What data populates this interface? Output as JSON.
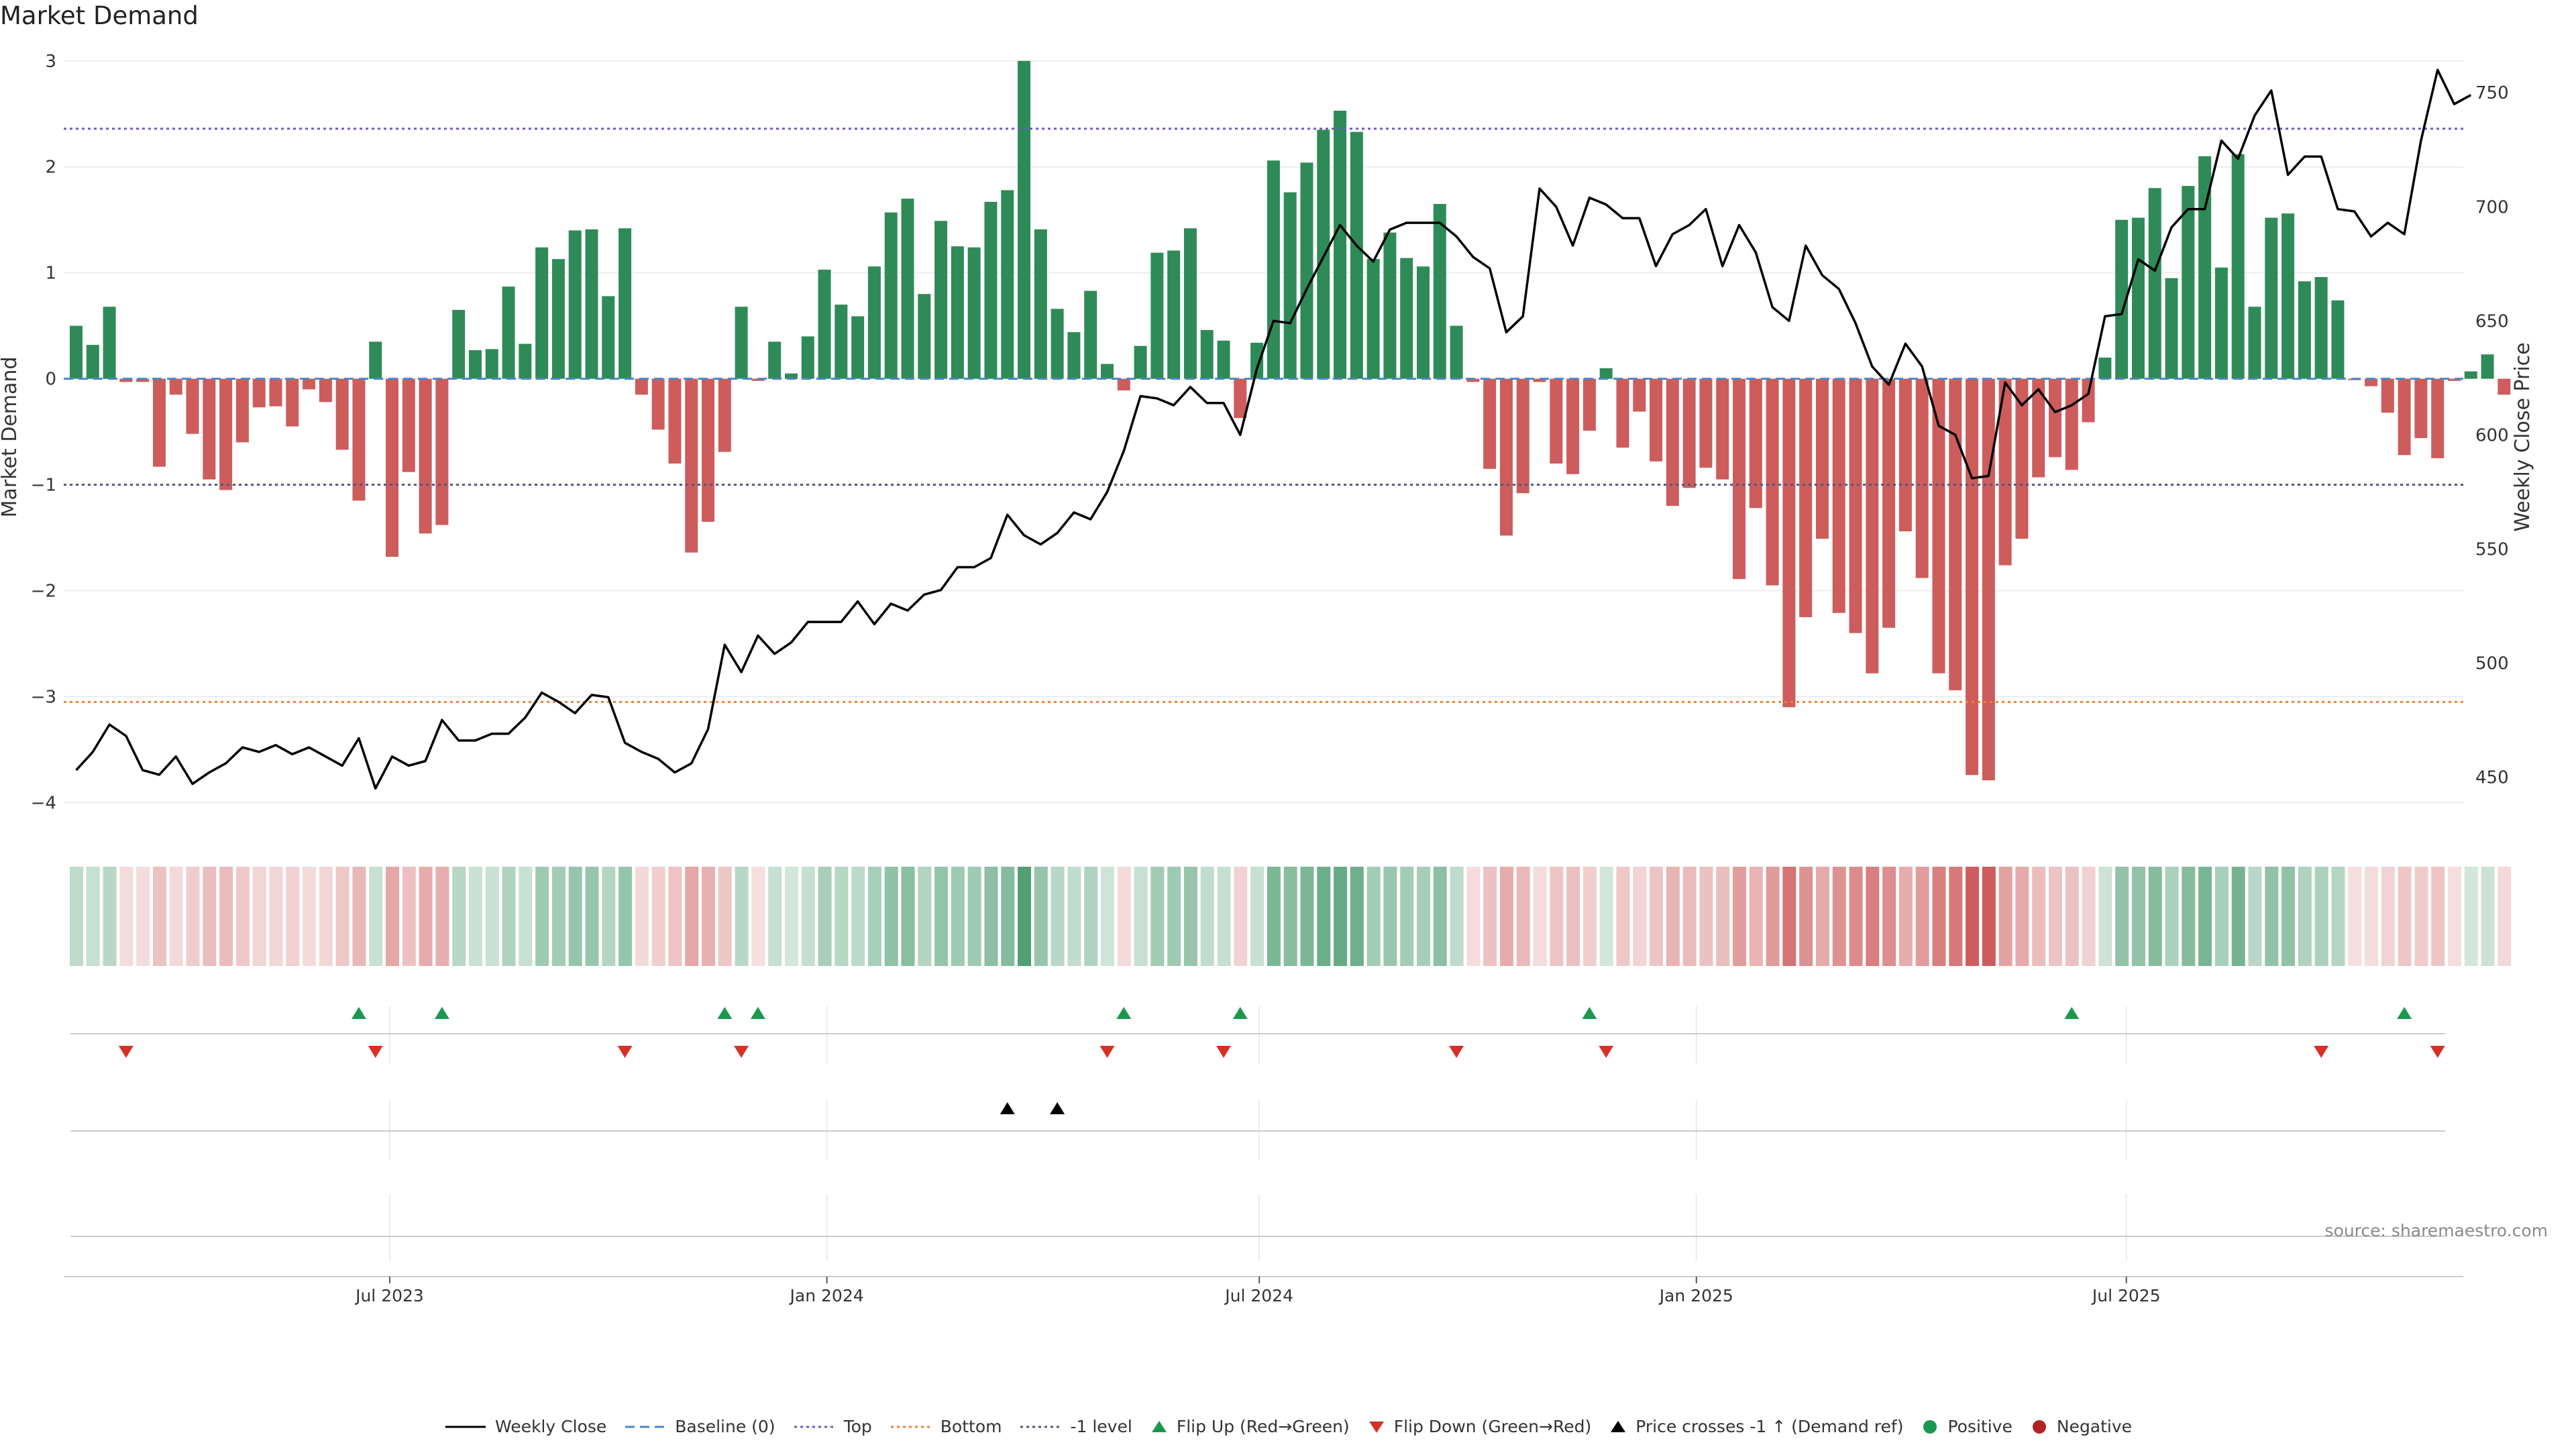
{
  "title": "Market Demand",
  "source": "source: sharemaestro.com",
  "colors": {
    "positive_bar": "#2e8b57",
    "negative_bar": "#cd5c5c",
    "price_line": "#000000",
    "top_line": "#6a5acd",
    "bottom_line": "#e8823a",
    "minus1_line": "#555577",
    "baseline": "#4a86c8",
    "flip_up": "#1a9850",
    "flip_down": "#d73027",
    "cross_marker": "#000000"
  },
  "legend": [
    {
      "label": "Weekly Close",
      "kind": "line",
      "color": "#000000",
      "dash": ""
    },
    {
      "label": "Baseline (0)",
      "kind": "line",
      "color": "#4a86c8",
      "dash": "14,8"
    },
    {
      "label": "Top",
      "kind": "line",
      "color": "#6a5acd",
      "dash": "4,5"
    },
    {
      "label": "Bottom",
      "kind": "line",
      "color": "#e8823a",
      "dash": "4,5"
    },
    {
      "label": "-1 level",
      "kind": "line",
      "color": "#555577",
      "dash": "4,5"
    },
    {
      "label": "Flip Up (Red→Green)",
      "kind": "up",
      "color": "#1a9850"
    },
    {
      "label": "Flip Down (Green→Red)",
      "kind": "down",
      "color": "#d73027"
    },
    {
      "label": "Price crosses -1 ↑ (Demand ref)",
      "kind": "up",
      "color": "#000000"
    },
    {
      "label": "Positive",
      "kind": "dot",
      "color": "#1a9850"
    },
    {
      "label": "Negative",
      "kind": "dot",
      "color": "#b22222"
    }
  ],
  "chart_data": {
    "type": "bar",
    "ylabel": "Market Demand",
    "y2label": "Weekly Close Price",
    "ylim": [
      -4.2,
      3.1
    ],
    "y2lim": [
      429.5,
      768.6
    ],
    "yticks": [
      3,
      2,
      1,
      0,
      -1,
      -2,
      -3,
      -4
    ],
    "ytick_labels": [
      "3",
      "2",
      "1",
      "0",
      "−1",
      "−2",
      "−3",
      "−4"
    ],
    "y2ticks": [
      750,
      700,
      650,
      600,
      550,
      500,
      450
    ],
    "y2tick_labels": [
      "750",
      "700",
      "650",
      "600",
      "550",
      "500",
      "450"
    ],
    "x_week_start": "2023-02-19",
    "xticks": [
      {
        "label": "Jul 2023",
        "date": "2023-07-01"
      },
      {
        "label": "Jan 2024",
        "date": "2024-01-01"
      },
      {
        "label": "Jul 2024",
        "date": "2024-07-01"
      },
      {
        "label": "Jan 2025",
        "date": "2025-01-01"
      },
      {
        "label": "Jul 2025",
        "date": "2025-07-01"
      }
    ],
    "reference_lines": [
      {
        "name": "Top",
        "value": 2.36
      },
      {
        "name": "Bottom",
        "value": -3.05
      },
      {
        "name": "-1 level",
        "value": -1.0
      },
      {
        "name": "Baseline (0)",
        "value": 0
      }
    ],
    "demand": [
      0.5,
      0.32,
      0.68,
      -0.03,
      -0.03,
      -0.83,
      -0.15,
      -0.52,
      -0.95,
      -1.05,
      -0.6,
      -0.27,
      -0.26,
      -0.45,
      -0.1,
      -0.22,
      -0.67,
      -1.15,
      0.35,
      -1.68,
      -0.88,
      -1.46,
      -1.38,
      0.65,
      0.27,
      0.28,
      0.87,
      0.33,
      1.24,
      1.13,
      1.4,
      1.41,
      0.78,
      1.42,
      -0.15,
      -0.48,
      -0.8,
      -1.64,
      -1.35,
      -0.69,
      0.68,
      -0.02,
      0.35,
      0.05,
      0.4,
      1.03,
      0.7,
      0.59,
      1.06,
      1.57,
      1.7,
      0.8,
      1.49,
      1.25,
      1.24,
      1.67,
      1.78,
      3.0,
      1.41,
      0.66,
      0.44,
      0.83,
      0.14,
      -0.11,
      0.31,
      1.19,
      1.21,
      1.42,
      0.46,
      0.36,
      -0.37,
      0.34,
      2.06,
      1.76,
      2.04,
      2.35,
      2.53,
      2.33,
      1.13,
      1.38,
      1.14,
      1.06,
      1.65,
      0.5,
      -0.03,
      -0.85,
      -1.48,
      -1.08,
      -0.03,
      -0.8,
      -0.9,
      -0.49,
      0.1,
      -0.65,
      -0.31,
      -0.78,
      -1.2,
      -1.03,
      -0.84,
      -0.95,
      -1.89,
      -1.22,
      -1.95,
      -3.1,
      -2.25,
      -1.51,
      -2.21,
      -2.4,
      -2.78,
      -2.35,
      -1.44,
      -1.88,
      -2.78,
      -2.94,
      -3.74,
      -3.79,
      -1.76,
      -1.51,
      -0.93,
      -0.74,
      -0.86,
      -0.41,
      0.2,
      1.5,
      1.52,
      1.8,
      0.95,
      1.82,
      2.1,
      1.05,
      2.12,
      0.68,
      1.52,
      1.56,
      0.92,
      0.96,
      0.74,
      -0.01,
      -0.07,
      -0.32,
      -0.72,
      -0.56,
      -0.75,
      -0.02,
      0.07,
      0.23,
      -0.15
    ],
    "price": [
      453,
      461,
      473,
      468,
      453,
      451,
      459,
      447,
      452,
      456,
      463,
      461,
      464,
      460,
      463,
      459,
      455,
      467,
      445,
      459,
      455,
      457,
      475,
      466,
      466,
      469,
      469,
      476,
      487,
      483,
      478,
      486,
      485,
      465,
      461,
      458,
      452,
      456,
      471,
      508,
      496,
      512,
      504,
      509,
      518,
      518,
      518,
      527,
      517,
      526,
      523,
      530,
      532,
      542,
      542,
      546,
      565,
      556,
      552,
      557,
      566,
      563,
      575,
      593,
      617,
      616,
      613,
      621,
      614,
      614,
      600,
      629,
      650,
      649,
      664,
      678,
      692,
      683,
      676,
      690,
      693,
      693,
      693,
      687,
      678,
      673,
      645,
      652,
      708,
      700,
      683,
      704,
      701,
      695,
      695,
      674,
      688,
      692,
      699,
      674,
      692,
      680,
      656,
      650,
      683,
      670,
      664,
      649,
      630,
      622,
      640,
      630,
      604,
      600,
      581,
      582,
      623,
      613,
      620,
      610,
      613,
      618,
      652,
      653,
      677,
      672,
      691,
      699,
      699,
      729,
      721,
      740,
      751,
      714,
      722,
      722,
      699,
      698,
      687,
      693,
      688,
      729,
      760,
      745,
      749
    ],
    "flip_up_weeks": [
      17,
      22,
      39,
      41,
      63,
      70,
      91,
      120,
      140
    ],
    "flip_down_weeks": [
      3,
      18,
      33,
      40,
      62,
      69,
      83,
      92,
      135,
      142
    ],
    "price_cross_weeks": [
      56,
      59
    ]
  }
}
